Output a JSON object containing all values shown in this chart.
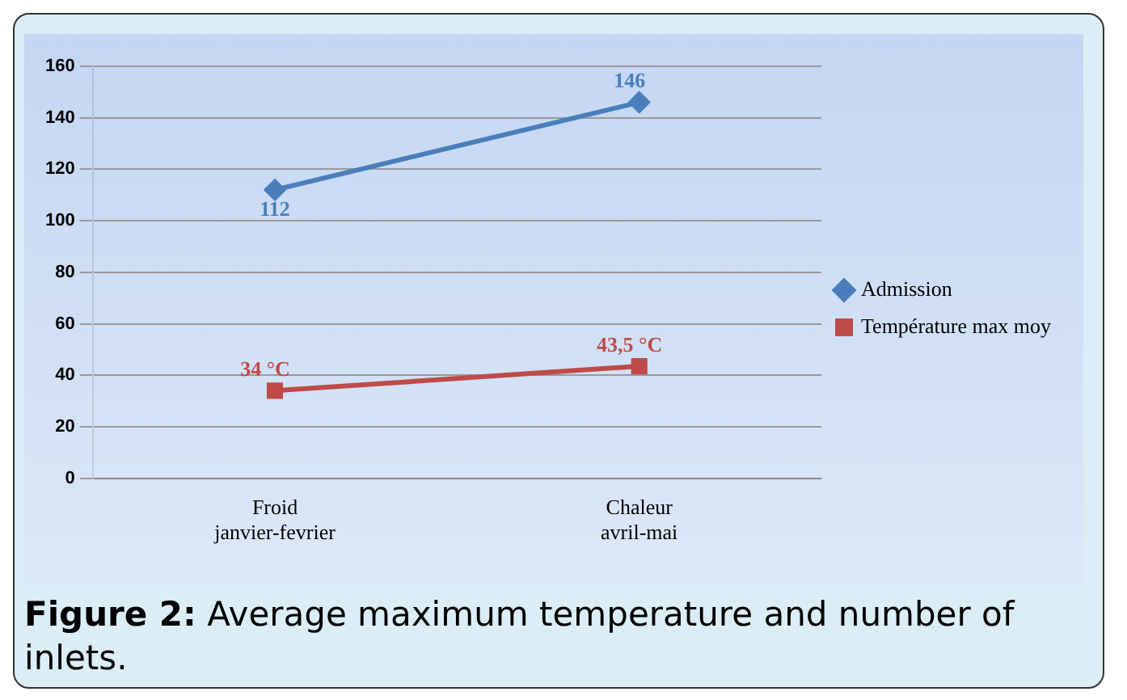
{
  "chart_data": {
    "type": "line",
    "categories": [
      "Froid\njanvier-fevrier",
      "Chaleur\navril-mai"
    ],
    "series": [
      {
        "name": "Admission",
        "color": "#4a7ebb",
        "values": [
          112,
          146
        ],
        "marker": "diamond",
        "value_labels": [
          "112",
          "146"
        ]
      },
      {
        "name": "Température max moy",
        "color": "#be4b48",
        "values": [
          34,
          43.5
        ],
        "marker": "square",
        "value_labels": [
          "34 °C",
          "43,5 °C"
        ]
      }
    ],
    "ylim": [
      0,
      160
    ],
    "yticks": [
      0,
      20,
      40,
      60,
      80,
      100,
      120,
      140,
      160
    ],
    "grid": "y",
    "legend": "right",
    "line_style": "solid",
    "annotations": [
      "Figure 2: Average maximum temperature and number of inlets."
    ]
  }
}
